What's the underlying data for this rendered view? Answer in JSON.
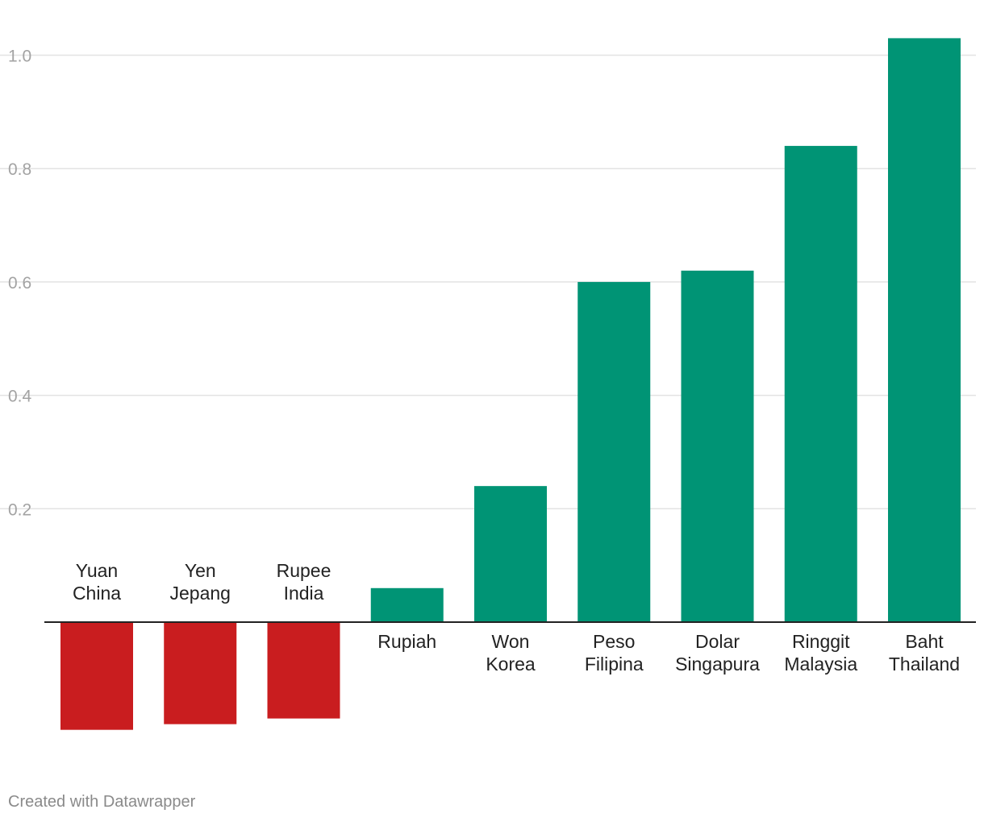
{
  "chart_data": {
    "type": "bar",
    "categories": [
      [
        "Yuan",
        "China"
      ],
      [
        "Yen",
        "Jepang"
      ],
      [
        "Rupee",
        "India"
      ],
      [
        "Rupiah"
      ],
      [
        "Won",
        "Korea"
      ],
      [
        "Peso",
        "Filipina"
      ],
      [
        "Dolar",
        "Singapura"
      ],
      [
        "Ringgit",
        "Malaysia"
      ],
      [
        "Baht",
        "Thailand"
      ]
    ],
    "values": [
      -0.19,
      -0.18,
      -0.17,
      0.06,
      0.24,
      0.6,
      0.62,
      0.84,
      1.03
    ],
    "yticks": [
      "0.2",
      "0.4",
      "0.6",
      "0.8",
      "1.0"
    ],
    "ylim": [
      -0.19,
      1.03
    ],
    "grid": true,
    "colors": {
      "positive": "#009475",
      "negative": "#c91d1f",
      "grid": "#e3e3e3",
      "baseline": "#222222"
    }
  },
  "footer": {
    "credit": "Created with Datawrapper"
  }
}
